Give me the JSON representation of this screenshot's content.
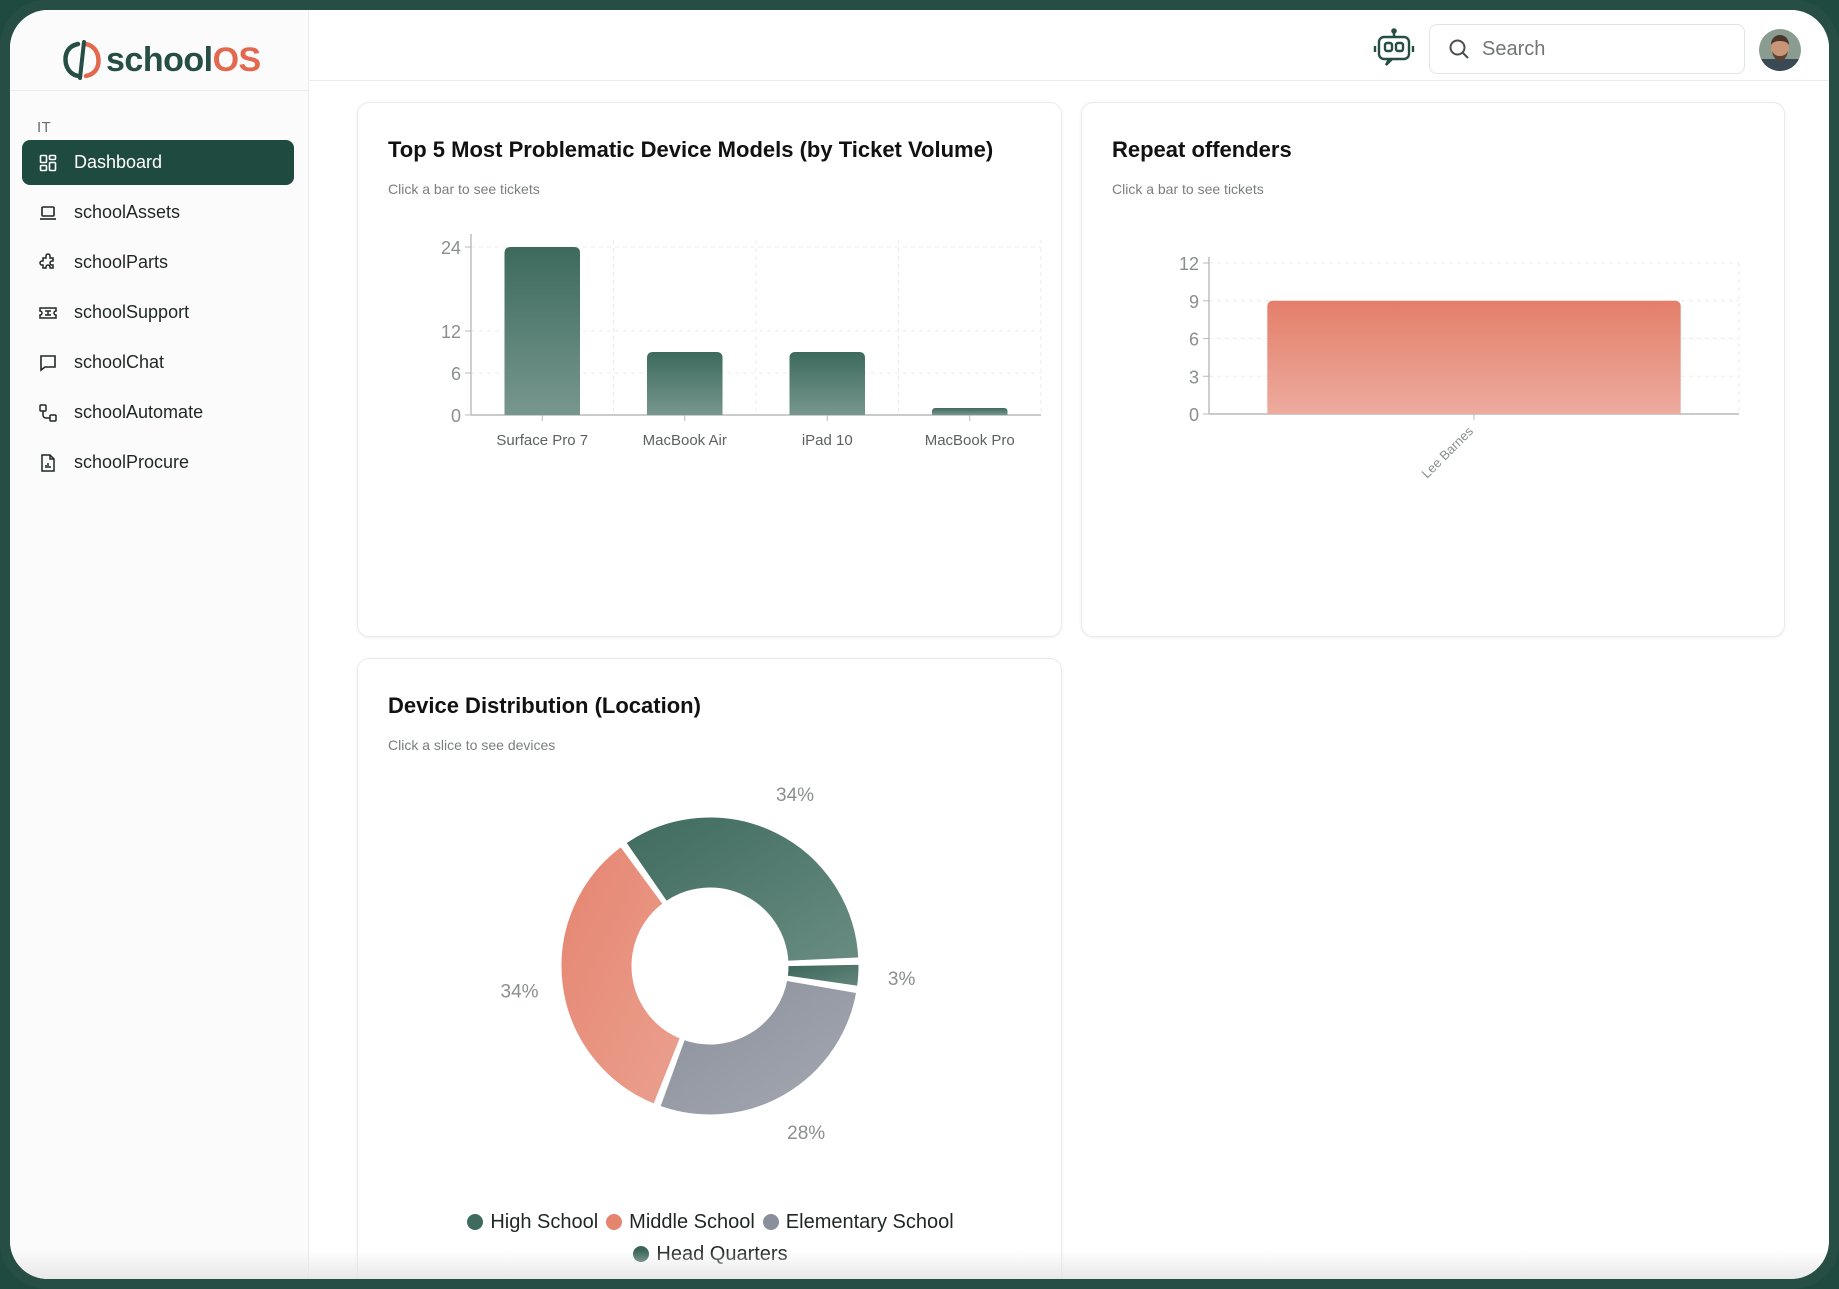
{
  "brand": {
    "name_part1": "school",
    "name_part2": "OS",
    "primary": "#274e44",
    "accent": "#e2684f"
  },
  "sidebar": {
    "section": "IT",
    "items": [
      {
        "label": "Dashboard",
        "icon": "dashboard-icon",
        "active": true
      },
      {
        "label": "schoolAssets",
        "icon": "laptop-icon",
        "active": false
      },
      {
        "label": "schoolParts",
        "icon": "puzzle-icon",
        "active": false
      },
      {
        "label": "schoolSupport",
        "icon": "ticket-icon",
        "active": false
      },
      {
        "label": "schoolChat",
        "icon": "chat-icon",
        "active": false
      },
      {
        "label": "schoolAutomate",
        "icon": "workflow-icon",
        "active": false
      },
      {
        "label": "schoolProcure",
        "icon": "report-file-icon",
        "active": false
      }
    ]
  },
  "topbar": {
    "search_placeholder": "Search",
    "icons": [
      "assistant-bot-icon",
      "search-icon",
      "user-avatar"
    ]
  },
  "cards": {
    "problematic": {
      "title": "Top 5 Most Problematic Device Models (by Ticket Volume)",
      "subtitle": "Click a bar to see tickets"
    },
    "repeat": {
      "title": "Repeat offenders",
      "subtitle": "Click a bar to see tickets"
    },
    "distribution": {
      "title": "Device Distribution (Location)",
      "subtitle": "Click a slice to see devices"
    }
  },
  "chart_data": [
    {
      "type": "bar",
      "title": "Top 5 Most Problematic Device Models (by Ticket Volume)",
      "categories": [
        "Surface Pro 7",
        "MacBook Air",
        "iPad 10",
        "MacBook Pro"
      ],
      "values": [
        24,
        9,
        9,
        1
      ],
      "yticks": [
        0,
        6,
        12,
        24
      ],
      "ylim": [
        0,
        25
      ],
      "grid": true,
      "color": "#3d6a5d"
    },
    {
      "type": "bar",
      "title": "Repeat offenders",
      "categories": [
        "Lee Barnes"
      ],
      "values": [
        9
      ],
      "yticks": [
        0,
        3,
        6,
        9,
        12
      ],
      "ylim": [
        0,
        12
      ],
      "grid": true,
      "color": "#e47e6a"
    },
    {
      "type": "pie",
      "title": "Device Distribution (Location)",
      "donut": true,
      "slices": [
        {
          "label": "High School",
          "value": 34,
          "display": "34%",
          "color": "#3f6b5e"
        },
        {
          "label": "Head Quarters",
          "value": 3,
          "display": "3%",
          "color": "#3a6558"
        },
        {
          "label": "Elementary School",
          "value": 28,
          "display": "28%",
          "color": "#8a909b"
        },
        {
          "label": "Middle School",
          "value": 34,
          "display": "34%",
          "color": "#e58570"
        }
      ],
      "legend": [
        "High School",
        "Middle School",
        "Elementary School",
        "Head Quarters"
      ],
      "legend_position": "bottom"
    }
  ]
}
